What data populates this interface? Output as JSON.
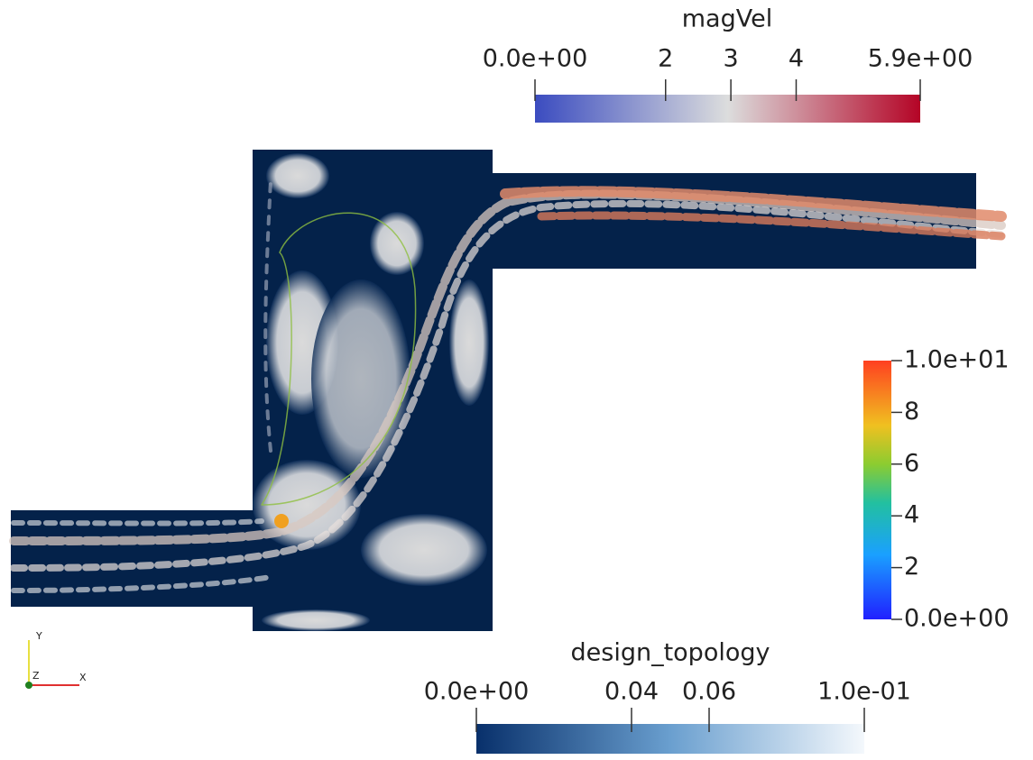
{
  "color_bars": [
    {
      "title": "magVel",
      "range": [
        0,
        5.9
      ],
      "ticks": [
        {
          "value": 0,
          "label": "0.0e+00"
        },
        2,
        3,
        4,
        {
          "value": 5.9,
          "label": "5.9e+00"
        }
      ]
    },
    {
      "range": [
        0,
        10
      ],
      "ticks": [
        {
          "value": 10,
          "label": "1.0e+01"
        },
        8,
        6,
        4,
        2,
        {
          "value": 0,
          "label": "0.0e+00"
        }
      ]
    },
    {
      "title": "design_topology",
      "range": [
        0,
        0.1
      ],
      "ticks": [
        {
          "value": 0,
          "label": "0.0e+00"
        },
        0.04,
        0.06,
        {
          "value": 0.1,
          "label": "1.0e-01"
        }
      ]
    }
  ],
  "axes_triad": {
    "labels": [
      "Y",
      "Z",
      "X"
    ]
  }
}
